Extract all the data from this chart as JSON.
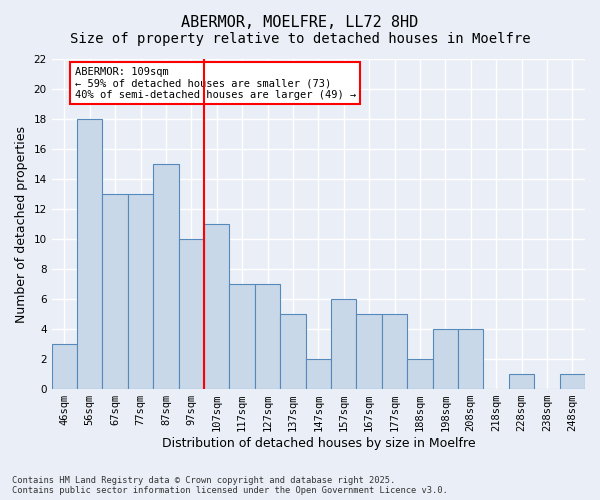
{
  "title": "ABERMOR, MOELFRE, LL72 8HD",
  "subtitle": "Size of property relative to detached houses in Moelfre",
  "xlabel": "Distribution of detached houses by size in Moelfre",
  "ylabel": "Number of detached properties",
  "categories": [
    "46sqm",
    "56sqm",
    "67sqm",
    "77sqm",
    "87sqm",
    "97sqm",
    "107sqm",
    "117sqm",
    "127sqm",
    "137sqm",
    "147sqm",
    "157sqm",
    "167sqm",
    "177sqm",
    "188sqm",
    "198sqm",
    "208sqm",
    "218sqm",
    "228sqm",
    "238sqm",
    "248sqm"
  ],
  "values": [
    3,
    18,
    13,
    13,
    15,
    10,
    11,
    7,
    7,
    5,
    2,
    6,
    5,
    5,
    2,
    4,
    4,
    0,
    1,
    0,
    1
  ],
  "bar_color": "#c8d8e8",
  "bar_edge_color": "#5588bb",
  "vline_x_index": 6,
  "vline_color": "red",
  "annotation_title": "ABERMOR: 109sqm",
  "annotation_line1": "← 59% of detached houses are smaller (73)",
  "annotation_line2": "40% of semi-detached houses are larger (49) →",
  "annotation_box_color": "white",
  "annotation_box_edge": "red",
  "ylim": [
    0,
    22
  ],
  "yticks": [
    0,
    2,
    4,
    6,
    8,
    10,
    12,
    14,
    16,
    18,
    20,
    22
  ],
  "footer1": "Contains HM Land Registry data © Crown copyright and database right 2025.",
  "footer2": "Contains public sector information licensed under the Open Government Licence v3.0.",
  "bg_color": "#eaeff7",
  "plot_bg_color": "#eaeff7",
  "grid_color": "#ffffff",
  "title_fontsize": 11,
  "subtitle_fontsize": 10,
  "tick_fontsize": 7.5,
  "ylabel_fontsize": 9,
  "xlabel_fontsize": 9,
  "annotation_fontsize": 7.5
}
